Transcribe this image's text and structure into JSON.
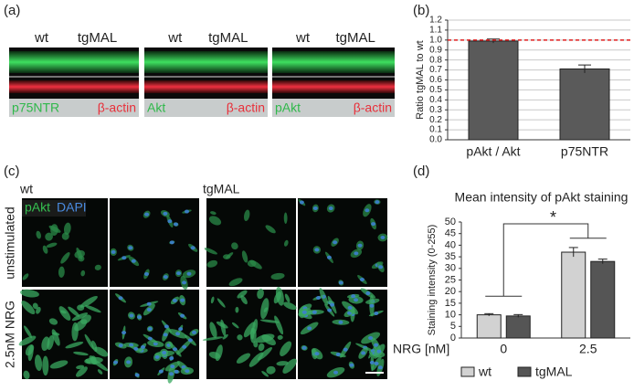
{
  "panels": {
    "a": "(a)",
    "b": "(b)",
    "c": "(c)",
    "d": "(d)"
  },
  "blots": [
    {
      "lanes": [
        "wt",
        "tgMAL"
      ],
      "captions": [
        "p75NTR",
        "β-actin"
      ]
    },
    {
      "lanes": [
        "wt",
        "tgMAL"
      ],
      "captions": [
        "Akt",
        "β-actin"
      ]
    },
    {
      "lanes": [
        "wt",
        "tgMAL"
      ],
      "captions": [
        "pAkt",
        "β-actin"
      ]
    }
  ],
  "microscopy": {
    "columns": [
      "wt",
      "tgMAL"
    ],
    "stains": [
      "pAkt",
      "DAPI"
    ],
    "rows": [
      "unstimulated",
      "2.5nM NRG"
    ]
  },
  "chart_data": [
    {
      "type": "bar",
      "ylabel": "Ratio tgMAL to wt",
      "categories": [
        "pAkt / Akt",
        "p75NTR"
      ],
      "values": [
        0.99,
        0.71
      ],
      "errors": [
        0.02,
        0.04
      ],
      "color": "#5a5a5a",
      "ylim": [
        0,
        1.2
      ],
      "yticks": [
        {
          "value": 0,
          "label": "0.0"
        },
        {
          "value": 0.1,
          "label": "0.1"
        },
        {
          "value": 0.2,
          "label": "0.2"
        },
        {
          "value": 0.3,
          "label": "0.3"
        },
        {
          "value": 0.4,
          "label": "0.4"
        },
        {
          "value": 0.5,
          "label": "0.5"
        },
        {
          "value": 0.6,
          "label": "0.6"
        },
        {
          "value": 0.7,
          "label": "0.7"
        },
        {
          "value": 0.8,
          "label": "0.8"
        },
        {
          "value": 0.9,
          "label": "0.9"
        },
        {
          "value": 1,
          "label": "1.0"
        },
        {
          "value": 1.1,
          "label": "1.1"
        },
        {
          "value": 1.2,
          "label": "1.2"
        }
      ],
      "grid": true,
      "reference_line": {
        "value": 1,
        "color": "#e02020"
      }
    },
    {
      "type": "grouped_bar",
      "title": "Mean intensity of pAkt staining",
      "ylabel": "Staining intensity (0-255)",
      "xlabel": "NRG [nM]",
      "categories": [
        "0",
        "2.5"
      ],
      "series": [
        {
          "name": "wt",
          "color": "#d2d2d2",
          "values": [
            10,
            37
          ],
          "errors": [
            0.5,
            2
          ]
        },
        {
          "name": "tgMAL",
          "color": "#555555",
          "values": [
            9.5,
            33
          ],
          "errors": [
            0.6,
            1
          ]
        }
      ],
      "ylim": [
        0,
        50
      ],
      "yticks": [
        0,
        5,
        10,
        15,
        20,
        25,
        30,
        35,
        40,
        45,
        50
      ],
      "grid": false,
      "annotation": "*",
      "legend": "bottom"
    }
  ]
}
